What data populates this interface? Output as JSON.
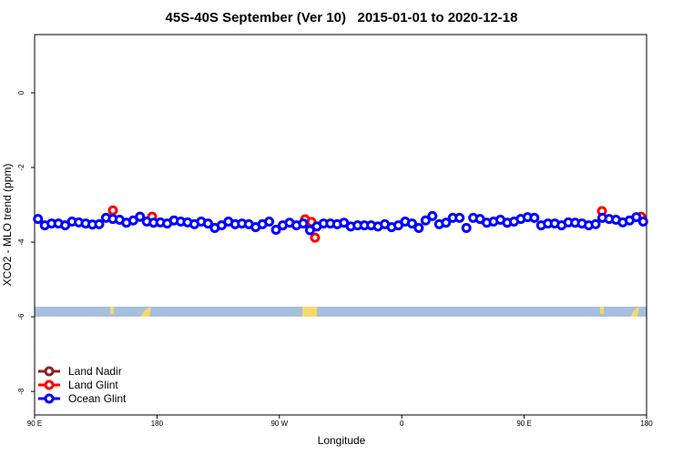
{
  "chart_data": {
    "type": "scatter",
    "title": "45S-40S September (Ver 10)   2015-01-01 to 2020-12-18",
    "x_label": "Longitude",
    "y_label": "XCO2 - MLO trend (ppm)",
    "xlim": [
      90,
      540
    ],
    "ylim": [
      -8.63,
      1.56
    ],
    "xticks": [
      {
        "value": 90,
        "label": "90 E"
      },
      180,
      {
        "value": 270,
        "label": "90 W"
      },
      {
        "value": 360,
        "label": "0"
      },
      {
        "value": 450,
        "label": "90 E"
      },
      {
        "value": 540,
        "label": "180"
      }
    ],
    "yticks": [
      0,
      -2,
      -4,
      -6,
      -8
    ],
    "legend": "bottom-left",
    "series": [
      {
        "name": "Land Nadir",
        "color": "#8b2323",
        "x": [],
        "values": []
      },
      {
        "name": "Land Glint",
        "color": "#ff0000",
        "x": [
          147.6,
          176.4,
          288.9,
          293.6,
          296.2,
          507.2,
          536.0
        ],
        "values": [
          -3.15,
          -3.32,
          -3.39,
          -3.46,
          -3.88,
          -3.17,
          -3.32
        ]
      },
      {
        "name": "Ocean Glint",
        "color": "#0000ff",
        "x": [
          92.5,
          97.5,
          102.5,
          107.5,
          112.5,
          117.5,
          122.5,
          127.5,
          132.5,
          137.5,
          142.5,
          147.5,
          152.5,
          157.5,
          162.5,
          167.5,
          172.5,
          177.5,
          182.5,
          187.5,
          192.5,
          197.5,
          202.5,
          207.5,
          212.5,
          217.5,
          222.5,
          227.5,
          232.5,
          237.5,
          242.5,
          247.5,
          252.5,
          257.5,
          262.5,
          267.5,
          272.5,
          277.5,
          282.5,
          287.5,
          292.5,
          297.5,
          302.5,
          307.5,
          312.5,
          317.5,
          322.5,
          327.5,
          332.5,
          337.5,
          342.5,
          347.5,
          352.5,
          357.5,
          362.5,
          367.5,
          372.5,
          377.5,
          382.5,
          387.5,
          392.5,
          397.5,
          402.5,
          407.5,
          412.5,
          417.5,
          422.5,
          427.5,
          432.5,
          437.5,
          442.5,
          447.5,
          452.5,
          457.5,
          462.5,
          467.5,
          472.5,
          477.5,
          482.5,
          487.5,
          492.5,
          497.5,
          502.5,
          507.5,
          512.5,
          517.5,
          522.5,
          527.5,
          532.5,
          537.5
        ],
        "values": [
          -3.38,
          -3.55,
          -3.5,
          -3.5,
          -3.55,
          -3.45,
          -3.47,
          -3.5,
          -3.53,
          -3.52,
          -3.35,
          -3.38,
          -3.4,
          -3.48,
          -3.42,
          -3.32,
          -3.45,
          -3.48,
          -3.47,
          -3.5,
          -3.42,
          -3.45,
          -3.47,
          -3.52,
          -3.45,
          -3.5,
          -3.62,
          -3.55,
          -3.45,
          -3.52,
          -3.5,
          -3.52,
          -3.6,
          -3.52,
          -3.45,
          -3.67,
          -3.55,
          -3.48,
          -3.55,
          -3.5,
          -3.68,
          -3.58,
          -3.5,
          -3.5,
          -3.52,
          -3.48,
          -3.58,
          -3.55,
          -3.55,
          -3.55,
          -3.58,
          -3.52,
          -3.6,
          -3.55,
          -3.45,
          -3.5,
          -3.62,
          -3.42,
          -3.3,
          -3.52,
          -3.48,
          -3.35,
          -3.35,
          -3.62,
          -3.35,
          -3.38,
          -3.48,
          -3.45,
          -3.4,
          -3.48,
          -3.45,
          -3.38,
          -3.33,
          -3.35,
          -3.55,
          -3.5,
          -3.5,
          -3.55,
          -3.47,
          -3.48,
          -3.5,
          -3.55,
          -3.52,
          -3.35,
          -3.38,
          -3.4,
          -3.47,
          -3.42,
          -3.33,
          -3.45
        ]
      }
    ]
  }
}
